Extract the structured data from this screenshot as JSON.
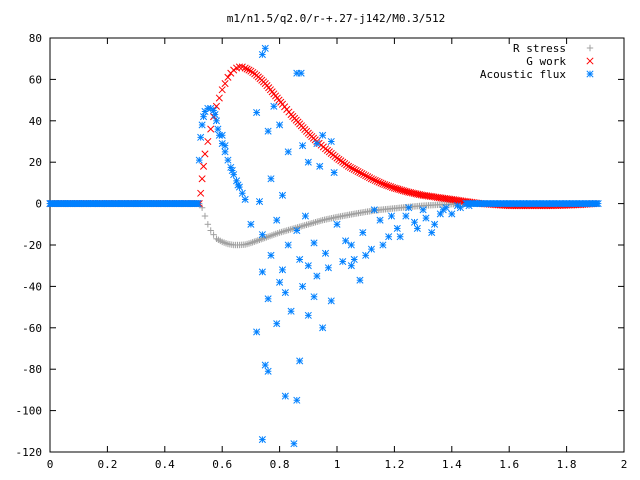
{
  "chart_data": {
    "type": "scatter",
    "title": "m1/n1.5/q2.0/r-+.27-j142/M0.3/512",
    "xlabel": "",
    "ylabel": "",
    "xlim": [
      0,
      2
    ],
    "ylim": [
      -120,
      80
    ],
    "x_ticks": [
      0,
      0.2,
      0.4,
      0.6,
      0.8,
      1,
      1.2,
      1.4,
      1.6,
      1.8,
      2
    ],
    "x_tick_labels": [
      "0",
      "0.2",
      "0.4",
      "0.6",
      "0.8",
      "1",
      "1.2",
      "1.4",
      "1.6",
      "1.8",
      "2"
    ],
    "y_ticks": [
      -120,
      -100,
      -80,
      -60,
      -40,
      -20,
      0,
      20,
      40,
      60,
      80
    ],
    "y_tick_labels": [
      "-120",
      "-100",
      "-80",
      "-60",
      "-40",
      "-20",
      "0",
      "20",
      "40",
      "60",
      "80"
    ],
    "grid": false,
    "legend_position": "top-right",
    "legend": [
      {
        "label": "R stress",
        "marker": "+",
        "color": "#a0a0a0"
      },
      {
        "label": "G work",
        "marker": "x",
        "color": "#ff0000"
      },
      {
        "label": "Acoustic flux",
        "marker": "*",
        "color": "#0080ff"
      }
    ],
    "series": [
      {
        "name": "R stress",
        "marker": "+",
        "color": "#a0a0a0",
        "points": [
          [
            0.0,
            0
          ],
          [
            0.05,
            0
          ],
          [
            0.1,
            0
          ],
          [
            0.15,
            0
          ],
          [
            0.2,
            0
          ],
          [
            0.25,
            0
          ],
          [
            0.3,
            0
          ],
          [
            0.35,
            0
          ],
          [
            0.4,
            0
          ],
          [
            0.45,
            0
          ],
          [
            0.5,
            0
          ],
          [
            0.52,
            0
          ],
          [
            0.53,
            -2
          ],
          [
            0.54,
            -6
          ],
          [
            0.55,
            -10
          ],
          [
            0.56,
            -13
          ],
          [
            0.57,
            -15
          ],
          [
            0.58,
            -17
          ],
          [
            0.6,
            -18.5
          ],
          [
            0.62,
            -19.5
          ],
          [
            0.64,
            -20
          ],
          [
            0.66,
            -20
          ],
          [
            0.68,
            -19.8
          ],
          [
            0.7,
            -19
          ],
          [
            0.73,
            -17.5
          ],
          [
            0.76,
            -16
          ],
          [
            0.8,
            -14
          ],
          [
            0.85,
            -12
          ],
          [
            0.9,
            -10
          ],
          [
            0.95,
            -8
          ],
          [
            1.0,
            -6.5
          ],
          [
            1.05,
            -5.2
          ],
          [
            1.1,
            -4
          ],
          [
            1.15,
            -3
          ],
          [
            1.2,
            -2.3
          ],
          [
            1.25,
            -1.6
          ],
          [
            1.3,
            -1
          ],
          [
            1.35,
            -0.6
          ],
          [
            1.4,
            -0.3
          ],
          [
            1.45,
            -0.1
          ],
          [
            1.5,
            0
          ],
          [
            1.55,
            0
          ],
          [
            1.6,
            0
          ],
          [
            1.65,
            0
          ],
          [
            1.7,
            0
          ],
          [
            1.75,
            0
          ],
          [
            1.8,
            0
          ],
          [
            1.85,
            0
          ],
          [
            1.9,
            0
          ]
        ]
      },
      {
        "name": "G work",
        "marker": "x",
        "color": "#ff0000",
        "points": [
          [
            0.0,
            0
          ],
          [
            0.05,
            0
          ],
          [
            0.1,
            0
          ],
          [
            0.15,
            0
          ],
          [
            0.2,
            0
          ],
          [
            0.25,
            0
          ],
          [
            0.3,
            0
          ],
          [
            0.35,
            0
          ],
          [
            0.4,
            0
          ],
          [
            0.45,
            0
          ],
          [
            0.5,
            0
          ],
          [
            0.52,
            0
          ],
          [
            0.525,
            5
          ],
          [
            0.53,
            12
          ],
          [
            0.535,
            18
          ],
          [
            0.54,
            24
          ],
          [
            0.55,
            30
          ],
          [
            0.56,
            36
          ],
          [
            0.57,
            42
          ],
          [
            0.58,
            47
          ],
          [
            0.59,
            51
          ],
          [
            0.6,
            55
          ],
          [
            0.61,
            58
          ],
          [
            0.62,
            61
          ],
          [
            0.63,
            63
          ],
          [
            0.64,
            64.5
          ],
          [
            0.65,
            65.5
          ],
          [
            0.66,
            66
          ],
          [
            0.67,
            66
          ],
          [
            0.68,
            65.5
          ],
          [
            0.7,
            64
          ],
          [
            0.72,
            62
          ],
          [
            0.75,
            58
          ],
          [
            0.78,
            53
          ],
          [
            0.81,
            48
          ],
          [
            0.84,
            43
          ],
          [
            0.87,
            38.5
          ],
          [
            0.9,
            34
          ],
          [
            0.93,
            30
          ],
          [
            0.96,
            26.5
          ],
          [
            1.0,
            22
          ],
          [
            1.04,
            18
          ],
          [
            1.08,
            15
          ],
          [
            1.12,
            12
          ],
          [
            1.16,
            9.5
          ],
          [
            1.2,
            7.5
          ],
          [
            1.25,
            5.5
          ],
          [
            1.3,
            4
          ],
          [
            1.35,
            3
          ],
          [
            1.4,
            2
          ],
          [
            1.45,
            1
          ],
          [
            1.5,
            0
          ],
          [
            1.55,
            -0.5
          ],
          [
            1.6,
            -1
          ],
          [
            1.65,
            -1
          ],
          [
            1.7,
            -1
          ],
          [
            1.75,
            -1
          ],
          [
            1.8,
            -0.8
          ],
          [
            1.85,
            -0.5
          ],
          [
            1.9,
            0
          ]
        ]
      },
      {
        "name": "Acoustic flux",
        "marker": "*",
        "color": "#0080ff",
        "points": [
          [
            0.0,
            0
          ],
          [
            0.05,
            0
          ],
          [
            0.1,
            0
          ],
          [
            0.15,
            0
          ],
          [
            0.2,
            0
          ],
          [
            0.25,
            0
          ],
          [
            0.3,
            0
          ],
          [
            0.35,
            0
          ],
          [
            0.4,
            0
          ],
          [
            0.45,
            0
          ],
          [
            0.5,
            0
          ],
          [
            0.52,
            21
          ],
          [
            0.525,
            32
          ],
          [
            0.53,
            38
          ],
          [
            0.535,
            42
          ],
          [
            0.54,
            44.5
          ],
          [
            0.55,
            46
          ],
          [
            0.56,
            46
          ],
          [
            0.57,
            45
          ],
          [
            0.575,
            43
          ],
          [
            0.58,
            40
          ],
          [
            0.585,
            36
          ],
          [
            0.59,
            33
          ],
          [
            0.6,
            29
          ],
          [
            0.61,
            25
          ],
          [
            0.62,
            21
          ],
          [
            0.63,
            17.5
          ],
          [
            0.64,
            14
          ],
          [
            0.65,
            11
          ],
          [
            0.66,
            8
          ],
          [
            0.67,
            5
          ],
          [
            0.68,
            2
          ],
          [
            0.6,
            33
          ],
          [
            0.61,
            28
          ],
          [
            0.635,
            16
          ],
          [
            0.655,
            9
          ],
          [
            0.74,
            72
          ],
          [
            0.75,
            75
          ],
          [
            0.86,
            63
          ],
          [
            0.875,
            63
          ],
          [
            0.78,
            47
          ],
          [
            0.72,
            44
          ],
          [
            0.76,
            35
          ],
          [
            0.8,
            38
          ],
          [
            0.83,
            25
          ],
          [
            0.88,
            28
          ],
          [
            0.93,
            29
          ],
          [
            0.95,
            33
          ],
          [
            0.98,
            30
          ],
          [
            0.9,
            20
          ],
          [
            0.94,
            18
          ],
          [
            0.99,
            15
          ],
          [
            0.77,
            12
          ],
          [
            0.81,
            4
          ],
          [
            0.73,
            1
          ],
          [
            0.7,
            -10
          ],
          [
            0.74,
            -15
          ],
          [
            0.79,
            -8
          ],
          [
            0.83,
            -20
          ],
          [
            0.86,
            -13
          ],
          [
            0.89,
            -6
          ],
          [
            0.92,
            -19
          ],
          [
            0.96,
            -24
          ],
          [
            1.0,
            -10
          ],
          [
            1.03,
            -18
          ],
          [
            1.06,
            -27
          ],
          [
            1.09,
            -14
          ],
          [
            1.12,
            -22
          ],
          [
            1.15,
            -8
          ],
          [
            1.18,
            -16
          ],
          [
            1.21,
            -12
          ],
          [
            1.24,
            -6
          ],
          [
            1.27,
            -9
          ],
          [
            1.3,
            -3
          ],
          [
            1.33,
            -14
          ],
          [
            1.36,
            -5
          ],
          [
            1.38,
            -2
          ],
          [
            1.42,
            -1
          ],
          [
            1.45,
            0
          ],
          [
            0.77,
            -25
          ],
          [
            0.81,
            -32
          ],
          [
            0.87,
            -27
          ],
          [
            0.9,
            -30
          ],
          [
            0.93,
            -35
          ],
          [
            0.97,
            -31
          ],
          [
            1.02,
            -28
          ],
          [
            1.05,
            -30
          ],
          [
            0.74,
            -33
          ],
          [
            0.8,
            -38
          ],
          [
            0.76,
            -46
          ],
          [
            0.82,
            -43
          ],
          [
            0.88,
            -40
          ],
          [
            0.92,
            -45
          ],
          [
            0.98,
            -47
          ],
          [
            0.72,
            -62
          ],
          [
            0.84,
            -52
          ],
          [
            0.9,
            -54
          ],
          [
            0.95,
            -60
          ],
          [
            0.79,
            -58
          ],
          [
            0.75,
            -78
          ],
          [
            0.76,
            -81
          ],
          [
            0.82,
            -93
          ],
          [
            0.86,
            -95
          ],
          [
            0.87,
            -76
          ],
          [
            0.74,
            -114
          ],
          [
            0.85,
            -116
          ],
          [
            1.05,
            -20
          ],
          [
            1.08,
            -37
          ],
          [
            1.1,
            -25
          ],
          [
            1.13,
            -3
          ],
          [
            1.16,
            -20
          ],
          [
            1.19,
            -6
          ],
          [
            1.22,
            -16
          ],
          [
            1.25,
            -2
          ],
          [
            1.28,
            -12
          ],
          [
            1.31,
            -7
          ],
          [
            1.34,
            -10
          ],
          [
            1.37,
            -3
          ],
          [
            1.4,
            -5
          ],
          [
            1.43,
            -2
          ],
          [
            1.46,
            -1
          ],
          [
            1.5,
            0
          ],
          [
            1.55,
            0
          ],
          [
            1.6,
            0
          ],
          [
            1.65,
            0
          ],
          [
            1.7,
            0
          ],
          [
            1.75,
            0
          ],
          [
            1.8,
            0
          ],
          [
            1.85,
            0
          ],
          [
            1.9,
            0
          ]
        ]
      }
    ]
  }
}
